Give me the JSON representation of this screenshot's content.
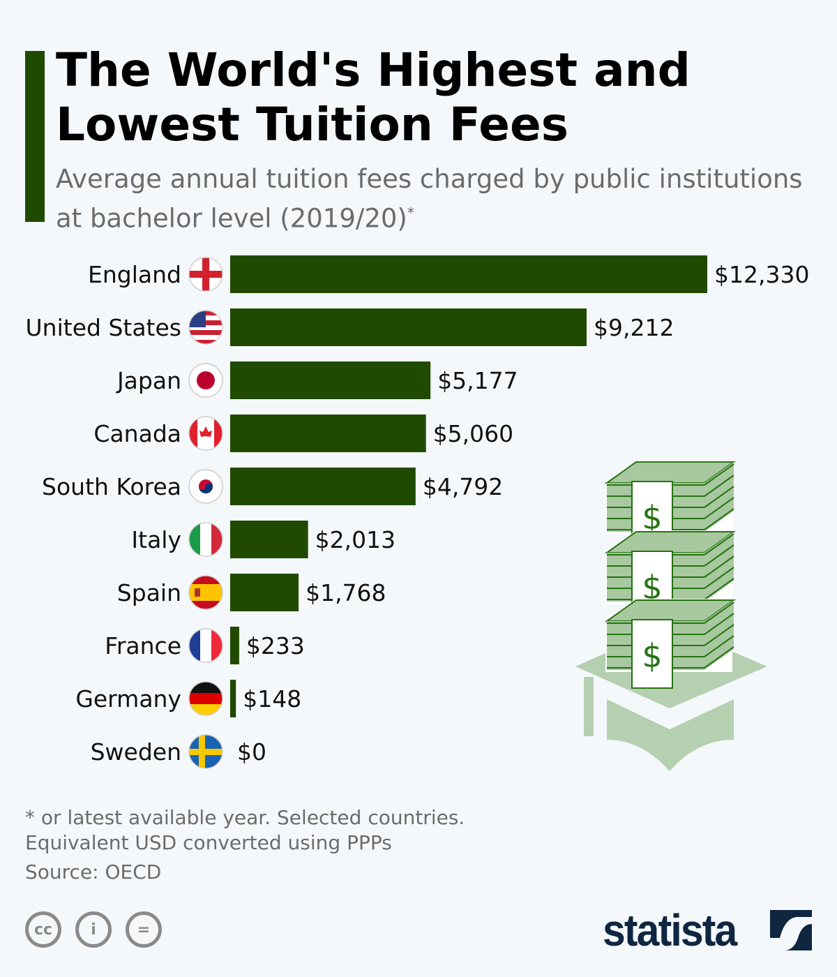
{
  "header": {
    "title": "The World's Highest and Lowest Tuition Fees",
    "subtitle": "Average annual tuition fees charged by public institutions at bachelor level (2019/20)",
    "subtitle_mark": "*"
  },
  "chart_data": {
    "type": "bar",
    "orientation": "horizontal",
    "categories": [
      "England",
      "United States",
      "Japan",
      "Canada",
      "South Korea",
      "Italy",
      "Spain",
      "France",
      "Germany",
      "Sweden"
    ],
    "values": [
      12330,
      9212,
      5177,
      5060,
      4792,
      2013,
      1768,
      233,
      148,
      0
    ],
    "labels": [
      "$12,330",
      "$9,212",
      "$5,177",
      "$5,060",
      "$4,792",
      "$2,013",
      "$1,768",
      "$233",
      "$148",
      "$0"
    ],
    "unit": "USD",
    "xlim": [
      0,
      12330
    ],
    "grid": false,
    "bar_color": "#1f4a00"
  },
  "flags": [
    "england-flag-icon",
    "us-flag-icon",
    "japan-flag-icon",
    "canada-flag-icon",
    "south-korea-flag-icon",
    "italy-flag-icon",
    "spain-flag-icon",
    "france-flag-icon",
    "germany-flag-icon",
    "sweden-flag-icon"
  ],
  "footer": {
    "note1": "* or latest available year. Selected countries.",
    "note2": "Equivalent USD converted using PPPs",
    "source": "Source: OECD",
    "license_icons": [
      "cc-icon",
      "attribution-icon",
      "no-derivatives-icon"
    ],
    "logo": "statista"
  },
  "colors": {
    "accent": "#1f4a00",
    "illustration": "#b5d0b0",
    "illustration_line": "#267312",
    "logo": "#0f2640"
  }
}
